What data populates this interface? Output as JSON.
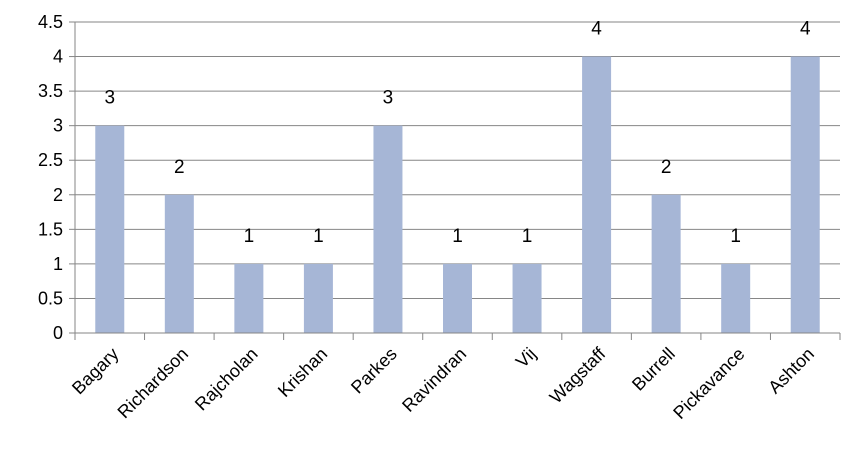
{
  "chart_data": {
    "type": "bar",
    "categories": [
      "Bagary",
      "Richardson",
      "Rajcholan",
      "Krishan",
      "Parkes",
      "Ravindran",
      "Vij",
      "Wagstaff",
      "Burrell",
      "Pickavance",
      "Ashton"
    ],
    "values": [
      3,
      2,
      1,
      1,
      3,
      1,
      1,
      4,
      2,
      1,
      4
    ],
    "data_labels": [
      "3",
      "2",
      "1",
      "1",
      "3",
      "1",
      "1",
      "4",
      "2",
      "1",
      "4"
    ],
    "yticks": [
      "0",
      "0.5",
      "1",
      "1.5",
      "2",
      "2.5",
      "3",
      "3.5",
      "4",
      "4.5"
    ],
    "ylim": [
      0,
      4.5
    ],
    "grid": "horizontal",
    "legend": "none",
    "bar_color": "#A6B6D6"
  }
}
